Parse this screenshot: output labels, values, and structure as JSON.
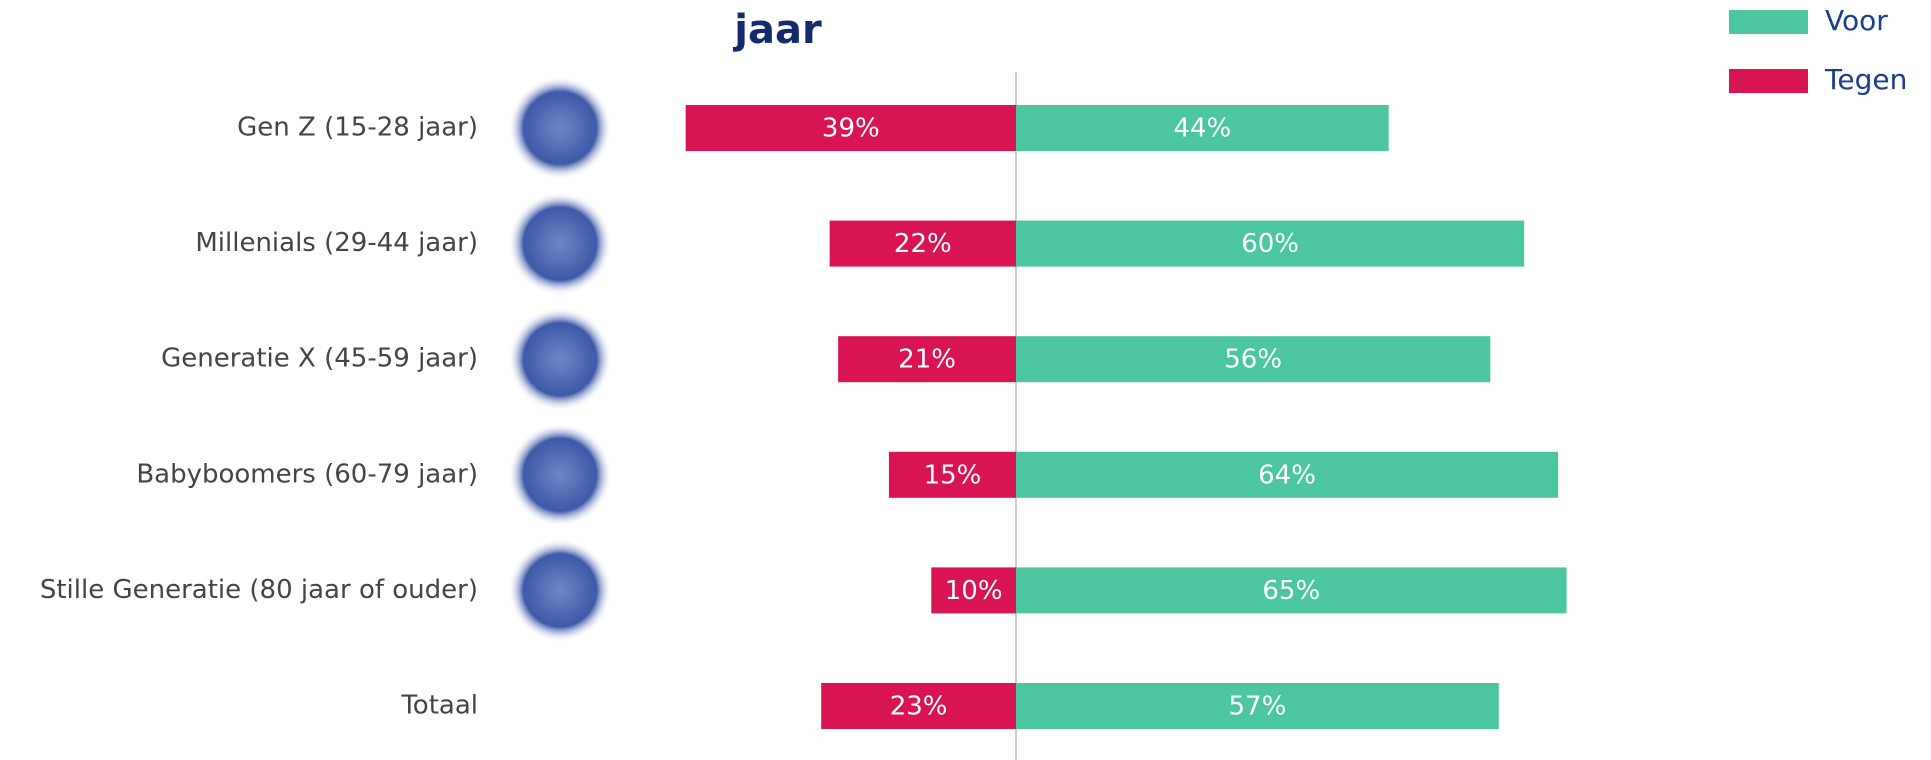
{
  "chart_data": {
    "type": "bar",
    "title": "jaar",
    "categories": [
      "Gen Z (15-28 jaar)",
      "Millenials (29-44 jaar)",
      "Generatie X (45-59 jaar)",
      "Babyboomers (60-79 jaar)",
      "Stille Generatie (80 jaar of ouder)",
      "Totaal"
    ],
    "series": [
      {
        "name": "Voor",
        "color": "#4cc6a0",
        "values": [
          44,
          60,
          56,
          64,
          65,
          57
        ],
        "value_labels": [
          "44%",
          "60%",
          "56%",
          "64%",
          "65%",
          "57%"
        ]
      },
      {
        "name": "Tegen",
        "color": "#d91452",
        "values": [
          39,
          22,
          21,
          15,
          10,
          23
        ],
        "value_labels": [
          "39%",
          "22%",
          "21%",
          "15%",
          "10%",
          "23%"
        ]
      }
    ]
  }
}
